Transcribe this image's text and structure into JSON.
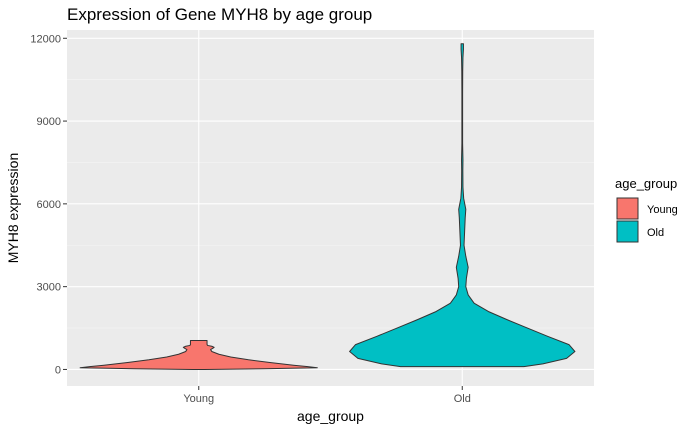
{
  "chart_data": {
    "type": "violin",
    "title": "Expression of Gene MYH8 by age group",
    "xlabel": "age_group",
    "ylabel": "MYH8 expression",
    "categories": [
      "Young",
      "Old"
    ],
    "ylim": [
      -600,
      12300
    ],
    "yticks": [
      0,
      3000,
      6000,
      9000,
      12000
    ],
    "grid": true,
    "legend": {
      "title": "age_group",
      "position": "right",
      "entries": [
        {
          "label": "Young",
          "color": "#F8766D"
        },
        {
          "label": "Old",
          "color": "#00BFC4"
        }
      ]
    },
    "series": [
      {
        "name": "Young",
        "color": "#F8766D",
        "min": 0,
        "max": 1050,
        "profile": [
          [
            0,
            0.05
          ],
          [
            25,
            0.55
          ],
          [
            60,
            1.0
          ],
          [
            100,
            0.92
          ],
          [
            150,
            0.8
          ],
          [
            250,
            0.6
          ],
          [
            350,
            0.42
          ],
          [
            450,
            0.27
          ],
          [
            550,
            0.17
          ],
          [
            650,
            0.11
          ],
          [
            720,
            0.1
          ],
          [
            770,
            0.12
          ],
          [
            800,
            0.13
          ],
          [
            840,
            0.11
          ],
          [
            870,
            0.075
          ],
          [
            900,
            0.07
          ],
          [
            1000,
            0.07
          ],
          [
            1050,
            0.07
          ]
        ]
      },
      {
        "name": "Old",
        "color": "#00BFC4",
        "min": 100,
        "max": 11800,
        "profile": [
          [
            100,
            0.52
          ],
          [
            200,
            0.68
          ],
          [
            400,
            0.88
          ],
          [
            650,
            0.95
          ],
          [
            900,
            0.9
          ],
          [
            1200,
            0.72
          ],
          [
            1500,
            0.55
          ],
          [
            1800,
            0.38
          ],
          [
            2100,
            0.22
          ],
          [
            2400,
            0.1
          ],
          [
            2700,
            0.05
          ],
          [
            3000,
            0.03
          ],
          [
            3300,
            0.035
          ],
          [
            3700,
            0.05
          ],
          [
            4100,
            0.03
          ],
          [
            4500,
            0.015
          ],
          [
            5000,
            0.02
          ],
          [
            5500,
            0.025
          ],
          [
            5800,
            0.03
          ],
          [
            6200,
            0.012
          ],
          [
            6600,
            0.006
          ],
          [
            7200,
            0.005
          ],
          [
            7600,
            0.006
          ],
          [
            8200,
            0.003
          ],
          [
            9000,
            0.003
          ],
          [
            10000,
            0.003
          ],
          [
            10800,
            0.004
          ],
          [
            11300,
            0.006
          ],
          [
            11600,
            0.01
          ],
          [
            11800,
            0.01
          ]
        ]
      }
    ]
  }
}
